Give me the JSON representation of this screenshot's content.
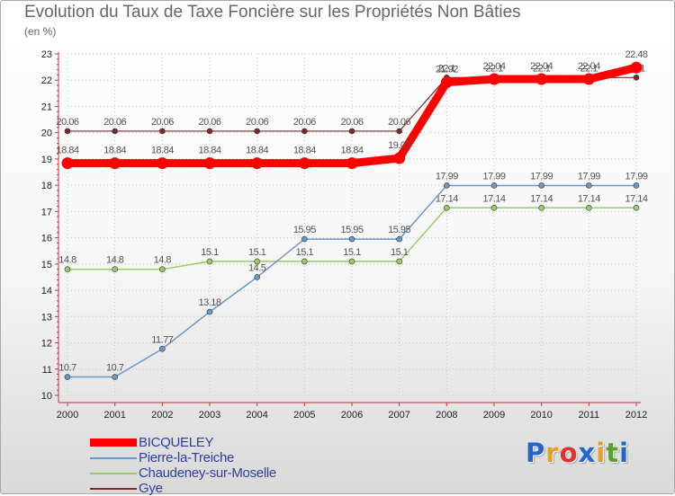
{
  "chart_data": {
    "type": "line",
    "title": "Evolution du Taux de Taxe Foncière sur les Propriétés Non Bâties",
    "unit_label": "(en %)",
    "x": [
      "2000",
      "2001",
      "2002",
      "2003",
      "2004",
      "2005",
      "2006",
      "2007",
      "2008",
      "2009",
      "2010",
      "2011",
      "2012"
    ],
    "ylim": [
      10,
      23
    ],
    "yticks": [
      10,
      11,
      12,
      13,
      14,
      15,
      16,
      17,
      18,
      19,
      20,
      21,
      22,
      23
    ],
    "series": [
      {
        "name": "Gye",
        "color": "#7a2a2a",
        "width": 1.2,
        "values": [
          20.06,
          20.06,
          20.06,
          20.06,
          20.06,
          20.06,
          20.06,
          20.06,
          22.1,
          22.1,
          22.1,
          22.1,
          22.1
        ],
        "labels": [
          "20.06",
          "20.06",
          "20.06",
          "20.06",
          "20.06",
          "20.06",
          "20.06",
          "20.06",
          "22.1",
          "22.1",
          "22.1",
          "22.1",
          "22.1"
        ]
      },
      {
        "name": "Chaudeney-sur-Moselle",
        "color": "#99cc66",
        "width": 1.5,
        "values": [
          14.8,
          14.8,
          14.8,
          15.1,
          15.1,
          15.1,
          15.1,
          15.1,
          17.14,
          17.14,
          17.14,
          17.14,
          17.14
        ],
        "labels": [
          "14.8",
          "14.8",
          "14.8",
          "15.1",
          "15.1",
          "15.1",
          "15.1",
          "15.1",
          "17.14",
          "17.14",
          "17.14",
          "17.14",
          "17.14"
        ]
      },
      {
        "name": "Pierre-la-Treiche",
        "color": "#6699cc",
        "width": 1.5,
        "values": [
          10.7,
          10.7,
          11.77,
          13.18,
          14.5,
          15.95,
          15.95,
          15.95,
          17.99,
          17.99,
          17.99,
          17.99,
          17.99
        ],
        "labels": [
          "10.7",
          "10.7",
          "11.77",
          "13.18",
          "14.5",
          "15.95",
          "15.95",
          "15.95",
          "17.99",
          "17.99",
          "17.99",
          "17.99",
          "17.99"
        ]
      },
      {
        "name": "BICQUELEY",
        "color": "#ff0000",
        "width": 9,
        "values": [
          18.84,
          18.84,
          18.84,
          18.84,
          18.84,
          18.84,
          18.84,
          19.03,
          21.92,
          22.04,
          22.04,
          22.04,
          22.48
        ],
        "labels": [
          "18.84",
          "18.84",
          "18.84",
          "18.84",
          "18.84",
          "18.84",
          "18.84",
          "19.03",
          "21.92",
          "22.04",
          "22.04",
          "22.04",
          "22.48"
        ]
      }
    ],
    "legend_order": [
      "BICQUELEY",
      "Pierre-la-Treiche",
      "Chaudeney-sur-Moselle",
      "Gye"
    ]
  },
  "brand": {
    "letters": [
      "P",
      "r",
      "o",
      "x",
      "i",
      "t",
      "i"
    ],
    "colors": [
      "#2266cc",
      "#e8a020",
      "#e03030",
      "#2266cc",
      "#e8a020",
      "#5aa030",
      "#2266cc"
    ]
  }
}
